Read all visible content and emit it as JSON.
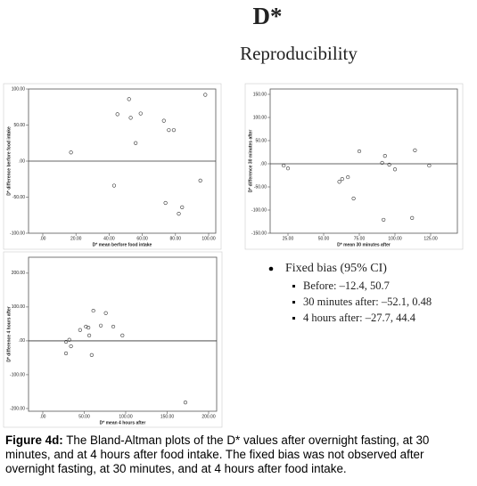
{
  "header": {
    "title": "D*",
    "subtitle": "Reproducibility"
  },
  "chart_data": [
    {
      "type": "scatter",
      "xlabel": "D* mean berfore food intake",
      "ylabel": "D* difference berfore food intake",
      "x": [
        17,
        45,
        52,
        53,
        59,
        56,
        73,
        76,
        79,
        98,
        43,
        74,
        82,
        84,
        95
      ],
      "y": [
        12,
        65,
        86,
        60,
        66,
        25,
        56,
        43,
        43,
        92,
        -34,
        -58,
        -73,
        -64,
        -27
      ],
      "xlim": [
        -8.6,
        104.3
      ],
      "ylim": [
        -100,
        100
      ],
      "xticks": [
        {
          "value": 0,
          "label": ".00"
        },
        {
          "value": 20,
          "label": "20.00"
        },
        {
          "value": 40,
          "label": "40.00"
        },
        {
          "value": 60,
          "label": "60.00"
        },
        {
          "value": 80,
          "label": "80.00"
        },
        {
          "value": 100,
          "label": "100.00"
        }
      ],
      "yticks": [
        {
          "value": -100,
          "label": "-100.00"
        },
        {
          "value": -50,
          "label": "-50.00"
        },
        {
          "value": 0,
          "label": ".00"
        },
        {
          "value": 50,
          "label": "50.00"
        },
        {
          "value": 100,
          "label": "100.00"
        }
      ],
      "reference_line": 0,
      "grid": false
    },
    {
      "type": "scatter",
      "xlabel": "D* mean 30 minutes after",
      "ylabel": "D* difference 30 minutes after",
      "x": [
        22,
        25,
        61,
        63,
        67,
        71,
        75,
        91,
        93,
        96,
        100,
        114,
        124,
        92,
        112
      ],
      "y": [
        -4,
        -10,
        -39,
        -33,
        -29,
        -75,
        27,
        2,
        17,
        -2,
        -12,
        29,
        -4,
        -121,
        -117
      ],
      "xlim": [
        12.5,
        143.75
      ],
      "ylim": [
        -150,
        161.5
      ],
      "xticks": [
        {
          "value": 25,
          "label": "25.00"
        },
        {
          "value": 50,
          "label": "50.00"
        },
        {
          "value": 75,
          "label": "75.00"
        },
        {
          "value": 100,
          "label": "100.00"
        },
        {
          "value": 125,
          "label": "125.00"
        }
      ],
      "yticks": [
        {
          "value": -150,
          "label": "-150.00"
        },
        {
          "value": -100,
          "label": "-100.00"
        },
        {
          "value": -50,
          "label": "-50.00"
        },
        {
          "value": 0,
          "label": ".00"
        },
        {
          "value": 50,
          "label": "50.00"
        },
        {
          "value": 100,
          "label": "100.00"
        },
        {
          "value": 150,
          "label": "150.00"
        }
      ],
      "reference_line": 0,
      "grid": false
    },
    {
      "type": "scatter",
      "xlabel": "D* mean 4 hours after",
      "ylabel": "D* difference 4 hours after",
      "x": [
        28,
        32,
        28,
        34,
        45,
        52,
        55,
        56,
        61,
        59,
        70,
        76,
        85,
        96,
        172
      ],
      "y": [
        -3,
        3,
        -37,
        -16,
        32,
        42,
        39,
        16,
        89,
        -42,
        45,
        82,
        42,
        16,
        -182
      ],
      "xlim": [
        -17.2,
        209.7
      ],
      "ylim": [
        -208,
        247
      ],
      "xticks": [
        {
          "value": 0,
          "label": ".00"
        },
        {
          "value": 50,
          "label": "50.00"
        },
        {
          "value": 100,
          "label": "100.00"
        },
        {
          "value": 150,
          "label": "150.00"
        },
        {
          "value": 200,
          "label": "200.00"
        }
      ],
      "yticks": [
        {
          "value": -200,
          "label": "-200.00"
        },
        {
          "value": -100,
          "label": "-100.00"
        },
        {
          "value": 0,
          "label": ".00"
        },
        {
          "value": 100,
          "label": "100.00"
        },
        {
          "value": 200,
          "label": "200.00"
        }
      ],
      "reference_line": 0,
      "grid": false
    }
  ],
  "notes": {
    "heading": "Fixed bias (95% CI)",
    "items": [
      "Before: –12.4, 50.7",
      "30 minutes after: –52.1, 0.48",
      "4 hours after: –27.7, 44.4"
    ]
  },
  "caption": {
    "label": "Figure 4d:",
    "text": "The Bland-Altman plots of the D* values after overnight fasting, at 30 minutes, and at 4 hours after food intake. The fixed bias was not observed after overnight fasting, at 30 minutes, and at 4 hours after food intake."
  }
}
